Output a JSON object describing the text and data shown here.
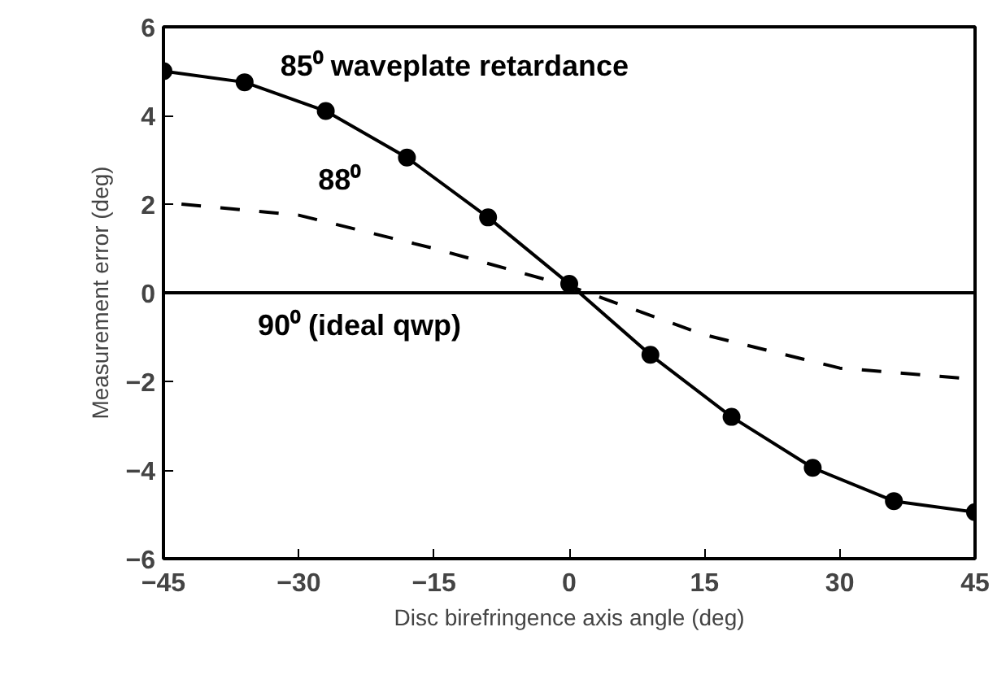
{
  "chart_data": {
    "type": "line",
    "xlabel": "Disc birefringence axis angle (deg)",
    "ylabel": "Measurement error (deg)",
    "xlim": [
      -45,
      45
    ],
    "ylim": [
      -6,
      6
    ],
    "xticks": [
      -45,
      -30,
      -15,
      0,
      15,
      30,
      45
    ],
    "yticks": [
      -6,
      -4,
      -2,
      0,
      2,
      4,
      6
    ],
    "grid": false,
    "series": [
      {
        "name": "85⁰ waveplate retardance",
        "color": "#000000",
        "marker": "circle",
        "line_style": "solid",
        "x": [
          -45,
          -36,
          -27,
          -18,
          -9,
          0,
          9,
          18,
          27,
          36,
          45
        ],
        "values": [
          5.0,
          4.75,
          4.1,
          3.05,
          1.7,
          0.2,
          -1.4,
          -2.8,
          -3.95,
          -4.7,
          -4.95
        ]
      },
      {
        "name": "88⁰",
        "color": "#000000",
        "marker": "none",
        "line_style": "dashed",
        "x": [
          -43,
          -30,
          -15,
          0,
          15,
          30,
          45
        ],
        "values": [
          2.0,
          1.75,
          1.0,
          0.15,
          -0.95,
          -1.7,
          -1.95
        ]
      },
      {
        "name": "90⁰ (ideal qwp)",
        "color": "#000000",
        "marker": "none",
        "line_style": "solid",
        "x": [
          -45,
          45
        ],
        "values": [
          0,
          0
        ]
      }
    ]
  }
}
